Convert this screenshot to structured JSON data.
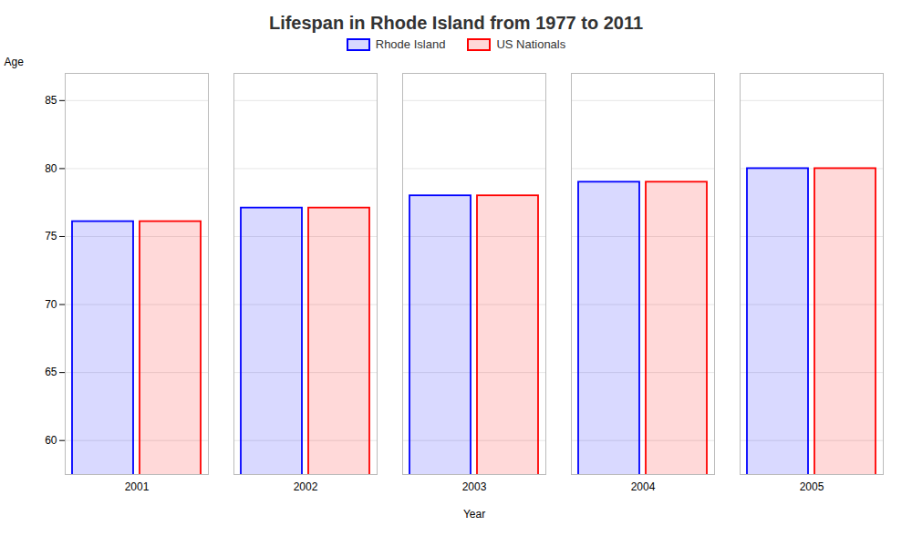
{
  "chart_data": {
    "type": "bar",
    "title": "Lifespan in Rhode Island from 1977 to 2011",
    "xlabel": "Year",
    "ylabel": "Age",
    "categories": [
      "2001",
      "2002",
      "2003",
      "2004",
      "2005"
    ],
    "series": [
      {
        "name": "Rhode Island",
        "color": "#0000ff",
        "values": [
          76.1,
          77.1,
          78.0,
          79.0,
          80.0
        ]
      },
      {
        "name": "US Nationals",
        "color": "#ff0000",
        "values": [
          76.1,
          77.1,
          78.0,
          79.0,
          80.0
        ]
      }
    ],
    "ylim": [
      57.5,
      87
    ],
    "yticks": [
      60,
      65,
      70,
      75,
      80,
      85
    ],
    "grid": true,
    "legend": "top"
  }
}
